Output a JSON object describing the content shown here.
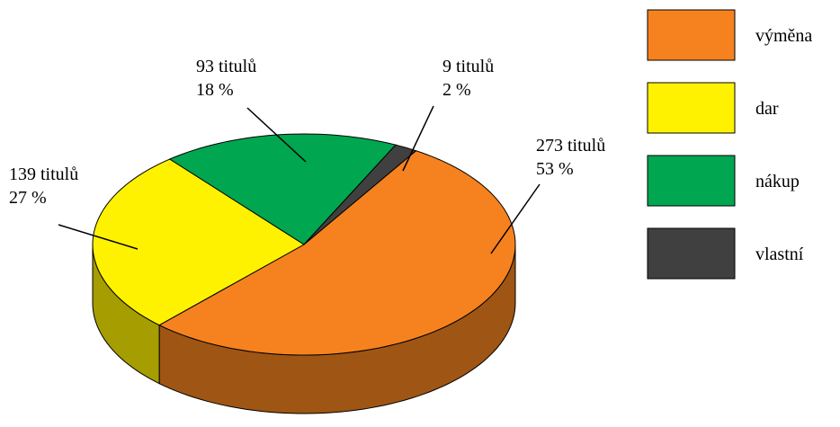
{
  "chart_data": {
    "type": "pie3d",
    "categories": [
      "výměna",
      "dar",
      "nákup",
      "vlastní"
    ],
    "values": [
      273,
      139,
      93,
      9
    ],
    "value_labels": [
      "273 titulů",
      "139 titulů",
      "93 titulů",
      "9 titulů"
    ],
    "percentages": [
      53,
      27,
      18,
      2
    ],
    "percentage_labels": [
      "53 %",
      "27 %",
      "18 %",
      "2 %"
    ],
    "colors": [
      "#f5821f",
      "#fff200",
      "#00a650",
      "#404040"
    ],
    "legend": "right"
  }
}
